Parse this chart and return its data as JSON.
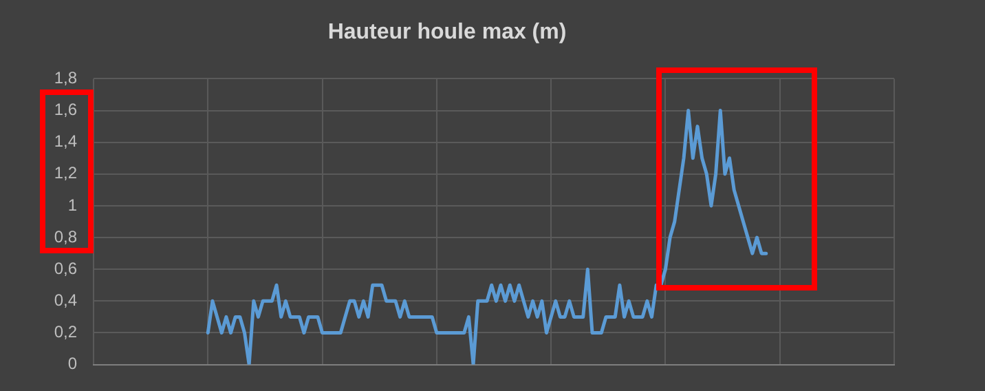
{
  "chart_data": {
    "type": "line",
    "title": "Hauteur houle max (m)",
    "categories": [
      null,
      null,
      null,
      null,
      null,
      null,
      null,
      null,
      null,
      null,
      null,
      null,
      null,
      null,
      null,
      null,
      null,
      null,
      null,
      null,
      null,
      null,
      null,
      null,
      null,
      null,
      null,
      null,
      null,
      null,
      null,
      null,
      null,
      null,
      null,
      null,
      null,
      null,
      null,
      null,
      null,
      null,
      null,
      null,
      null,
      null,
      null,
      null,
      null,
      null,
      null,
      null,
      null,
      null,
      null,
      null,
      null,
      null,
      null,
      null,
      null,
      null,
      null,
      null,
      null,
      null,
      null,
      null,
      null,
      null,
      null,
      null,
      null,
      null,
      null,
      null,
      null,
      null,
      null,
      null,
      null,
      null,
      null,
      null,
      null,
      null,
      null,
      null,
      null,
      null,
      null,
      null,
      null,
      null,
      null,
      null,
      null,
      null,
      null,
      null,
      null,
      null,
      null,
      null,
      null,
      null,
      null,
      null,
      null,
      null,
      null,
      null,
      null,
      null,
      null,
      null,
      null,
      null,
      null,
      null,
      null,
      null,
      null,
      null,
      null,
      null,
      null,
      null,
      null,
      null,
      null,
      null,
      null,
      null,
      null,
      null,
      null,
      null,
      null,
      null,
      null,
      null,
      null,
      null,
      null,
      null,
      null,
      null,
      null,
      null,
      null,
      null,
      null,
      null,
      null,
      null,
      null,
      null,
      null,
      null,
      null,
      null,
      null,
      null,
      null,
      null,
      null,
      null,
      null,
      null,
      null,
      null,
      null,
      null,
      null,
      null
    ],
    "series": [
      {
        "color": "#5b9bd5",
        "values": [
          null,
          null,
          null,
          null,
          null,
          null,
          null,
          null,
          null,
          null,
          null,
          null,
          null,
          null,
          null,
          null,
          null,
          null,
          null,
          null,
          null,
          null,
          null,
          null,
          null,
          0.2,
          0.4,
          0.3,
          0.2,
          0.3,
          0.2,
          0.3,
          0.3,
          0.2,
          0,
          0.4,
          0.3,
          0.4,
          0.4,
          0.4,
          0.5,
          0.3,
          0.4,
          0.3,
          0.3,
          0.3,
          0.2,
          0.3,
          0.3,
          0.3,
          0.2,
          0.2,
          0.2,
          0.2,
          0.2,
          0.3,
          0.4,
          0.4,
          0.3,
          0.4,
          0.3,
          0.5,
          0.5,
          0.5,
          0.4,
          0.4,
          0.4,
          0.3,
          0.4,
          0.3,
          0.3,
          0.3,
          0.3,
          0.3,
          0.3,
          0.2,
          0.2,
          0.2,
          0.2,
          0.2,
          0.2,
          0.2,
          0.3,
          0,
          0.4,
          0.4,
          0.4,
          0.5,
          0.4,
          0.5,
          0.4,
          0.5,
          0.4,
          0.5,
          0.4,
          0.3,
          0.4,
          0.3,
          0.4,
          0.2,
          0.3,
          0.4,
          0.3,
          0.3,
          0.4,
          0.3,
          0.3,
          0.3,
          0.6,
          0.2,
          0.2,
          0.2,
          0.3,
          0.3,
          0.3,
          0.5,
          0.3,
          0.4,
          0.3,
          0.3,
          0.3,
          0.4,
          0.3,
          0.5,
          0.5,
          0.6,
          0.8,
          0.9,
          1.1,
          1.3,
          1.6,
          1.3,
          1.5,
          1.3,
          1.2,
          1.0,
          1.2,
          1.6,
          1.2,
          1.3,
          1.1,
          1.0,
          0.9,
          0.8,
          0.7,
          0.8,
          0.7,
          0.7,
          null,
          null,
          null,
          null,
          null,
          null,
          null,
          null,
          null,
          null,
          null,
          null,
          null,
          null,
          null,
          null,
          null,
          null,
          null,
          null,
          null,
          null,
          null,
          null,
          null,
          null,
          null,
          null
        ]
      }
    ],
    "ylim": [
      0,
      1.8
    ],
    "yticks": [
      0,
      {
        "value": 0.2,
        "label": "0,2"
      },
      {
        "value": 0.4,
        "label": "0,4"
      },
      {
        "value": 0.6,
        "label": "0,6"
      },
      {
        "value": 0.8,
        "label": "0,8"
      },
      1,
      {
        "value": 1.2,
        "label": "1,2"
      },
      {
        "value": 1.4,
        "label": "1,4"
      },
      {
        "value": 1.6,
        "label": "1,6"
      },
      {
        "value": 1.8,
        "label": "1,8"
      }
    ],
    "tick_labels": "y",
    "grid": true,
    "legend": false,
    "marker": "none",
    "line_style": "solid"
  }
}
